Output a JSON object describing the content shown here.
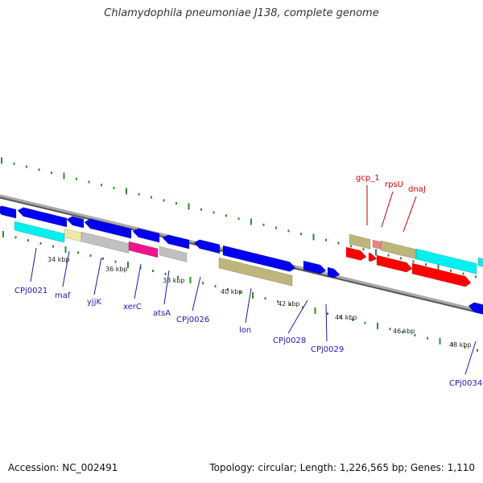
{
  "title": "Chlamydophila pneumoniae J138, complete genome",
  "footer": {
    "accession": "Accession: NC_002491",
    "summary": "Topology: circular; Length: 1,226,565 bp; Genes: 1,110"
  },
  "colors": {
    "backbone": "#8c8c8c",
    "tick": "#2e8b2e",
    "label_blue": "#1a1ab0",
    "label_red": "#cc0000"
  },
  "scale_labels": [
    "34 kbp",
    "36 kbp",
    "38 kbp",
    "40 kbp",
    "42 kbp",
    "44 kbp",
    "46 kbp",
    "48 kbp"
  ],
  "gene_labels": [
    {
      "text": "CPj0021",
      "color": "blue"
    },
    {
      "text": "maf",
      "color": "blue"
    },
    {
      "text": "yjjK",
      "color": "blue"
    },
    {
      "text": "xerC",
      "color": "blue"
    },
    {
      "text": "atsA",
      "color": "blue"
    },
    {
      "text": "CPj0026",
      "color": "blue"
    },
    {
      "text": "lon",
      "color": "blue"
    },
    {
      "text": "CPj0028",
      "color": "blue"
    },
    {
      "text": "CPj0029",
      "color": "blue"
    },
    {
      "text": "CPj0034",
      "color": "blue"
    },
    {
      "text": "gcp_1",
      "color": "red"
    },
    {
      "text": "rpsU",
      "color": "red"
    },
    {
      "text": "dnaJ",
      "color": "red"
    }
  ]
}
